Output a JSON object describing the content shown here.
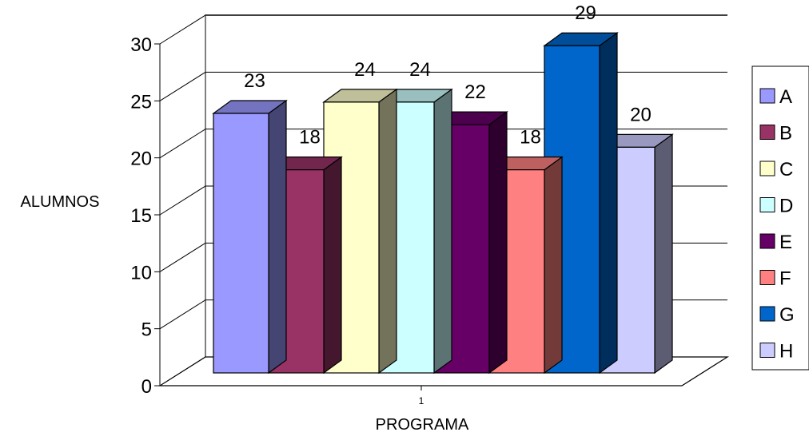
{
  "chart_data": {
    "type": "bar",
    "style": "3d-clustered-column",
    "categories": [
      "1"
    ],
    "series": [
      {
        "name": "A",
        "values": [
          23
        ],
        "color": "#9999ff"
      },
      {
        "name": "B",
        "values": [
          18
        ],
        "color": "#993366"
      },
      {
        "name": "C",
        "values": [
          24
        ],
        "color": "#ffffcc"
      },
      {
        "name": "D",
        "values": [
          24
        ],
        "color": "#ccffff"
      },
      {
        "name": "E",
        "values": [
          22
        ],
        "color": "#660066"
      },
      {
        "name": "F",
        "values": [
          18
        ],
        "color": "#ff8080"
      },
      {
        "name": "G",
        "values": [
          29
        ],
        "color": "#0066cc"
      },
      {
        "name": "H",
        "values": [
          20
        ],
        "color": "#ccccff"
      }
    ],
    "title": "",
    "xlabel": "PROGRAMA",
    "ylabel": "ALUMNOS",
    "ylim": [
      0,
      30
    ],
    "yticks": [
      0,
      5,
      10,
      15,
      20,
      25,
      30
    ],
    "data_labels": true,
    "grid": true,
    "legend": "right"
  }
}
